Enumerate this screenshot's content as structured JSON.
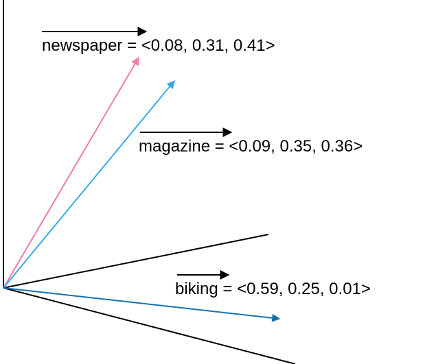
{
  "colors": {
    "axis": "#000000",
    "newspaper": "#F07AA8",
    "magazine": "#3AA8E8",
    "biking": "#1571B0",
    "text": "#000000"
  },
  "vectors": [
    {
      "id": "newspaper",
      "name": "newspaper",
      "values_text": " = <0.08, 0.31, 0.41>"
    },
    {
      "id": "magazine",
      "name": "magazine",
      "values_text": " = <0.09, 0.35, 0.36>"
    },
    {
      "id": "biking",
      "name": "biking",
      "values_text": " = <0.59, 0.25, 0.01>"
    }
  ]
}
